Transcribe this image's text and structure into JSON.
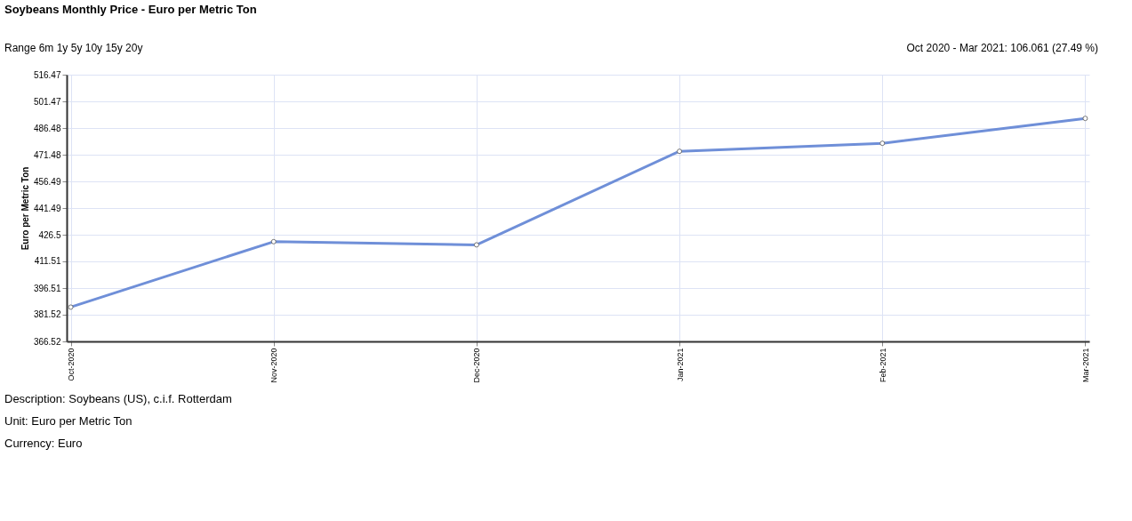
{
  "chart_data": {
    "type": "line",
    "title": "Soybeans Monthly Price - Euro per Metric Ton",
    "ylabel": "Euro per Metric Ton",
    "categories": [
      "Oct-2020",
      "Nov-2020",
      "Dec-2020",
      "Jan-2021",
      "Feb-2021",
      "Mar-2021"
    ],
    "series": [
      {
        "color": "#6f8fd8",
        "values": [
          385.8,
          422.6,
          420.8,
          473.4,
          477.9,
          491.9
        ]
      }
    ],
    "ylim": [
      366.52,
      516.47
    ],
    "yticks": [
      366.52,
      381.52,
      396.51,
      411.51,
      426.5,
      441.49,
      456.49,
      471.48,
      486.48,
      501.47,
      516.47
    ],
    "grid": true,
    "marker": "circle",
    "line_style": "solid",
    "annotations": [
      "Range 6m 1y 5y 10y 15y 20y",
      "Oct 2020 - Mar 2021: 106.061 (27.49 %)",
      "Description: Soybeans (US), c.i.f. Rotterdam",
      "Unit: Euro per Metric Ton",
      "Currency: Euro"
    ]
  }
}
